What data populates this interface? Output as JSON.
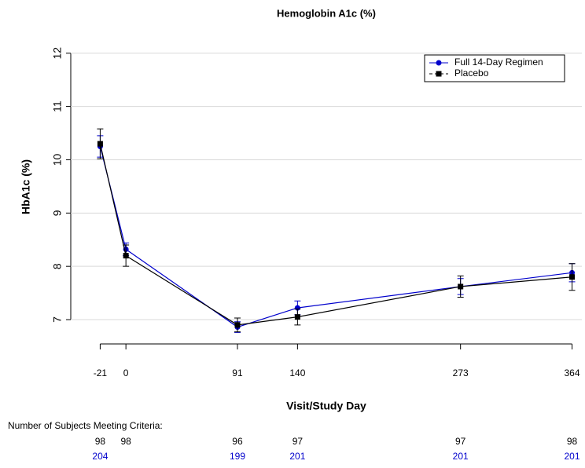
{
  "chart_data": {
    "type": "line",
    "title": "Hemoglobin A1c (%)",
    "x_label": "Visit/Study Day",
    "y_label": "HbA1c (%)",
    "x": [
      -21,
      0,
      91,
      140,
      273,
      364
    ],
    "series": [
      {
        "name": "Full 14-Day Regimen",
        "color": "#0000cc",
        "marker": "circle",
        "values": [
          10.25,
          8.32,
          6.86,
          7.22,
          7.62,
          7.88
        ],
        "errors": [
          0.2,
          0.12,
          0.1,
          0.13,
          0.15,
          0.17
        ],
        "counts": [
          204,
          null,
          199,
          201,
          201,
          201
        ]
      },
      {
        "name": "Placebo",
        "color": "#000000",
        "marker": "square",
        "values": [
          10.3,
          8.2,
          6.9,
          7.05,
          7.62,
          7.8
        ],
        "errors": [
          0.28,
          0.2,
          0.13,
          0.15,
          0.2,
          0.25
        ],
        "counts": [
          98,
          98,
          96,
          97,
          97,
          98
        ]
      }
    ],
    "counts_label": "Number of Subjects Meeting Criteria:",
    "xlim": [
      -45,
      372
    ],
    "xticks": [
      -21,
      0,
      91,
      140,
      273,
      364
    ],
    "ylim": [
      6.75,
      12.35
    ],
    "yticks": [
      7,
      8,
      9,
      10,
      11,
      12
    ],
    "grid": true,
    "legend": "top-right"
  }
}
